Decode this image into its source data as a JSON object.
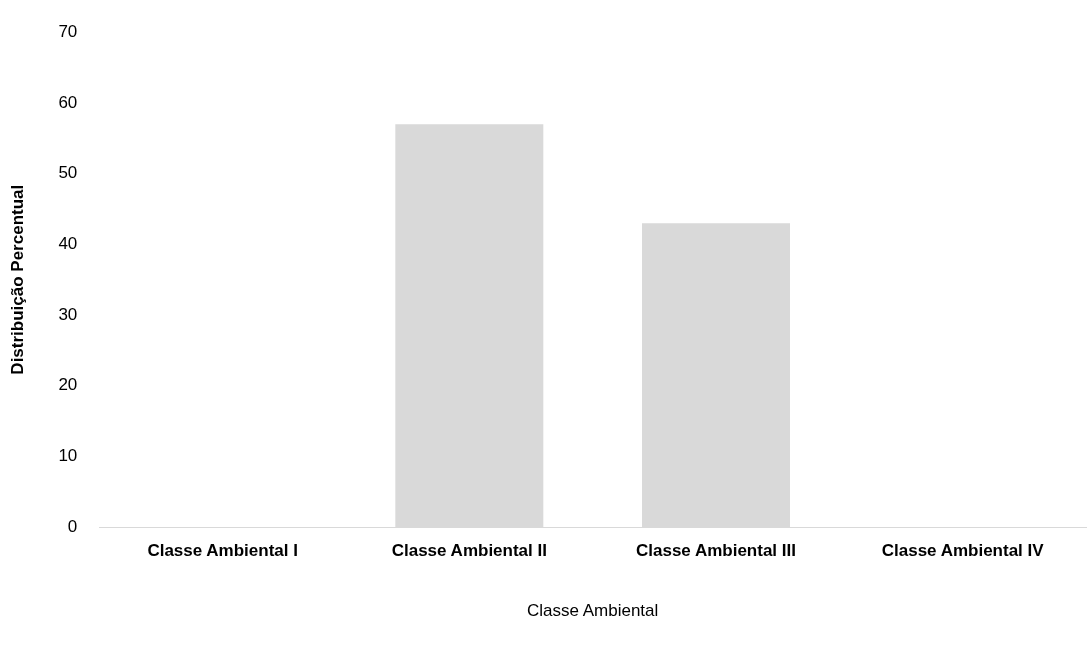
{
  "chart_data": {
    "type": "bar",
    "xlabel": "Classe Ambiental",
    "ylabel": "Distribuição Percentual",
    "categories": [
      "Classe Ambiental I",
      "Classe Ambiental II",
      "Classe Ambiental III",
      "Classe Ambiental IV"
    ],
    "values": [
      0,
      57,
      43,
      0
    ],
    "color": "#d9d9d9",
    "ylim": [
      0,
      70
    ],
    "yticks": [
      0,
      10,
      20,
      30,
      40,
      50,
      60,
      70
    ],
    "grid": false,
    "legend": false
  }
}
